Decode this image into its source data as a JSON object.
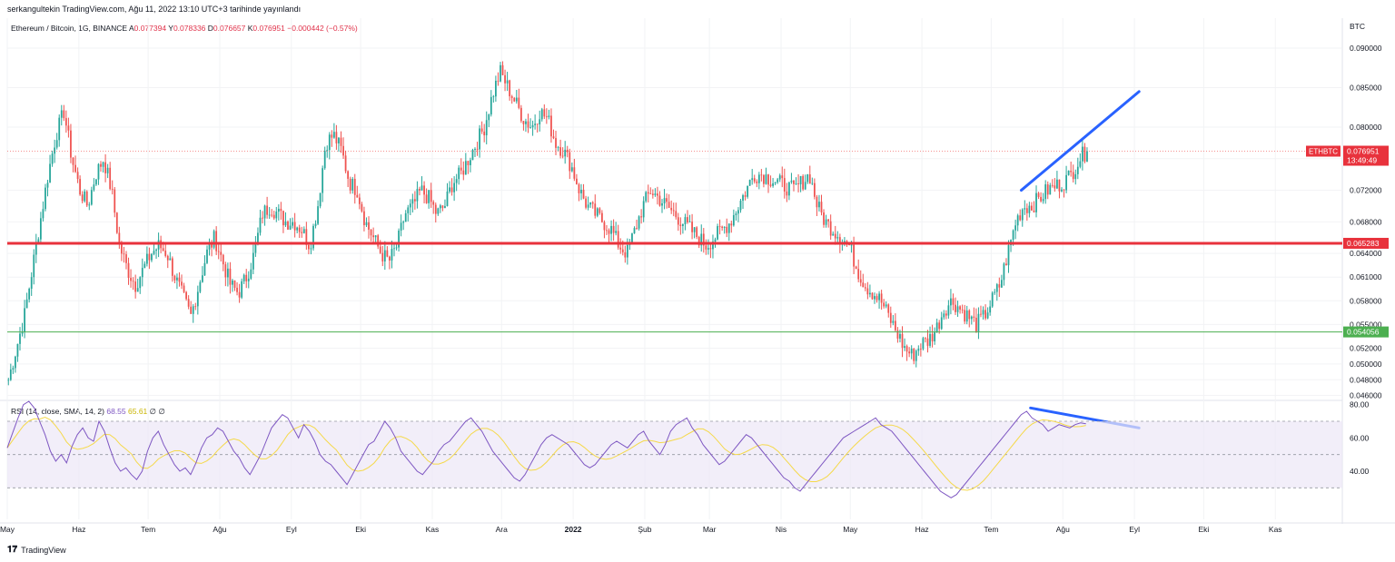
{
  "header": {
    "published": "serkangultekin TradingView.com, Ağu 11, 2022 13:10 UTC+3 tarihinde yayınlandı"
  },
  "legend": {
    "symbol": "Ethereum / Bitcoin, 1G, BINANCE",
    "open_label": "A",
    "open": "0.077394",
    "high_label": "Y",
    "high": "0.078336",
    "low_label": "D",
    "low": "0.076657",
    "close_label": "K",
    "close": "0.076951",
    "change": "−0.000442 (−0.57%)"
  },
  "rsi_legend": {
    "label": "RSI (14, close, SMA, 14, 2)",
    "rsi": "68.55",
    "ma": "65.61",
    "z1": "∅",
    "z2": "∅"
  },
  "footer": {
    "brand": "TradingView"
  },
  "colors": {
    "up": "#26a69a",
    "down": "#ef5350",
    "hline_red": "#e8323c",
    "hline_green": "#4caf50",
    "trend": "#2962ff",
    "rsi": "#7e57c2",
    "rsi_ma": "#f5d94a"
  },
  "chart_data": [
    {
      "type": "candlestick",
      "title": "Ethereum / Bitcoin, 1G, BINANCE",
      "ylabel": "BTC",
      "ylim": [
        0.0455,
        0.0915
      ],
      "y_ticks": [
        "0.090000",
        "0.085000",
        "0.080000",
        "0.076000",
        "0.072000",
        "0.068000",
        "0.064000",
        "0.061000",
        "0.058000",
        "0.055000",
        "0.052000",
        "0.050000",
        "0.048000",
        "0.046000"
      ],
      "x_ticks": [
        "May",
        "Haz",
        "Tem",
        "Ağu",
        "Eyl",
        "Eki",
        "Kas",
        "Ara",
        "2022",
        "Şub",
        "Mar",
        "Nis",
        "May",
        "Haz",
        "Tem",
        "Ağu",
        "Eyl",
        "Eki",
        "Kas"
      ],
      "x_range": [
        "2021-05-01",
        "2022-11-30"
      ],
      "trend": [
        [
          0.048,
          0.052,
          0.056,
          0.062,
          0.068,
          0.074,
          0.079,
          0.082,
          0.076,
          0.072,
          0.07,
          0.074,
          0.076,
          0.072,
          0.065,
          0.062,
          0.06,
          0.062,
          0.064,
          0.065,
          0.064,
          0.061,
          0.0585,
          0.056,
          0.06,
          0.064,
          0.066,
          0.063,
          0.06,
          0.059,
          0.061,
          0.064,
          0.069,
          0.07,
          0.069
        ],
        [
          0.068,
          0.068,
          0.067,
          0.065,
          0.07,
          0.078,
          0.079,
          0.077,
          0.073,
          0.072,
          0.068,
          0.066,
          0.064,
          0.063,
          0.065,
          0.069,
          0.07,
          0.072,
          0.071,
          0.069,
          0.07,
          0.073,
          0.074,
          0.076,
          0.078,
          0.08,
          0.084,
          0.087,
          0.085,
          0.083,
          0.081,
          0.08,
          0.082,
          0.081,
          0.078
        ],
        [
          0.077,
          0.075,
          0.072,
          0.07,
          0.069,
          0.068,
          0.067,
          0.065,
          0.064,
          0.067,
          0.07,
          0.072,
          0.071,
          0.07,
          0.069,
          0.068,
          0.067,
          0.066,
          0.065,
          0.066,
          0.067,
          0.068,
          0.07,
          0.072,
          0.074,
          0.074,
          0.0735,
          0.073,
          0.0725,
          0.072,
          0.073,
          0.074,
          0.07,
          0.068,
          0.067
        ],
        [
          0.066,
          0.065,
          0.062,
          0.06,
          0.059,
          0.058,
          0.056,
          0.054,
          0.052,
          0.051,
          0.0525,
          0.053,
          0.0545,
          0.057,
          0.058,
          0.057,
          0.056,
          0.055,
          0.056,
          0.058,
          0.06,
          0.064,
          0.068,
          0.07,
          0.07,
          0.071,
          0.072,
          0.0725,
          0.073,
          0.074,
          0.076,
          0.077
        ]
      ],
      "horizontal_lines": [
        {
          "price": 0.065283,
          "label": "0.065283",
          "color": "#e8323c"
        },
        {
          "price": 0.054056,
          "label": "0.054056",
          "color": "#4caf50"
        }
      ],
      "last_price": {
        "symbol": "ETHBTC",
        "price": "0.076951",
        "countdown": "13:49:49"
      },
      "trendline": {
        "from": [
          "2022-07-14",
          0.072
        ],
        "to": [
          "2022-09-03",
          0.0845
        ]
      }
    },
    {
      "type": "line",
      "title": "RSI (14, close, SMA, 14, 2)",
      "ylim": [
        22,
        82
      ],
      "y_ticks": [
        "80.00",
        "60.00",
        "40.00"
      ],
      "band": [
        30,
        70
      ],
      "rsi_path": [
        54,
        63,
        72,
        80,
        82,
        78,
        70,
        62,
        52,
        46,
        50,
        45,
        55,
        62,
        66,
        60,
        58,
        70,
        64,
        54,
        45,
        40,
        42,
        38,
        35,
        40,
        52,
        60,
        64,
        56,
        50,
        44,
        40,
        42,
        38,
        45,
        54,
        60,
        62,
        66,
        64,
        58,
        52,
        48,
        42,
        38,
        44,
        50,
        58,
        66,
        70,
        74,
        72,
        66,
        60,
        68,
        64,
        58,
        50,
        46,
        44,
        40,
        36,
        32,
        38,
        44,
        50,
        56,
        58,
        64,
        70,
        66,
        60,
        52,
        48,
        44,
        40,
        38,
        42,
        46,
        52,
        56,
        58,
        62,
        66,
        70,
        72,
        68,
        64,
        58,
        52,
        48,
        44,
        40,
        36,
        34,
        38,
        44,
        50,
        56,
        60,
        62,
        60,
        58,
        56,
        52,
        48,
        44,
        42,
        44,
        48,
        52,
        56,
        58,
        56,
        54,
        58,
        62,
        64,
        58,
        54,
        50,
        56,
        64,
        68,
        70,
        72,
        66,
        62,
        56,
        52,
        48,
        44,
        46,
        50,
        54,
        58,
        62,
        60,
        56,
        52,
        48,
        44,
        40,
        36,
        34,
        30,
        28,
        32,
        36,
        40,
        44,
        48,
        52,
        56,
        60,
        62,
        64,
        66,
        68,
        70,
        72,
        68,
        66,
        64,
        60,
        56,
        52,
        48,
        44,
        40,
        36,
        32,
        28,
        26,
        24,
        26,
        30,
        34,
        38,
        42,
        46,
        50,
        54,
        58,
        62,
        66,
        70,
        74,
        76,
        72,
        70,
        68,
        64,
        66,
        68,
        67,
        66,
        68,
        69,
        68.55
      ],
      "trendline": {
        "from": [
          "2022-07-18",
          78
        ],
        "to": [
          "2022-09-03",
          66
        ]
      }
    }
  ]
}
